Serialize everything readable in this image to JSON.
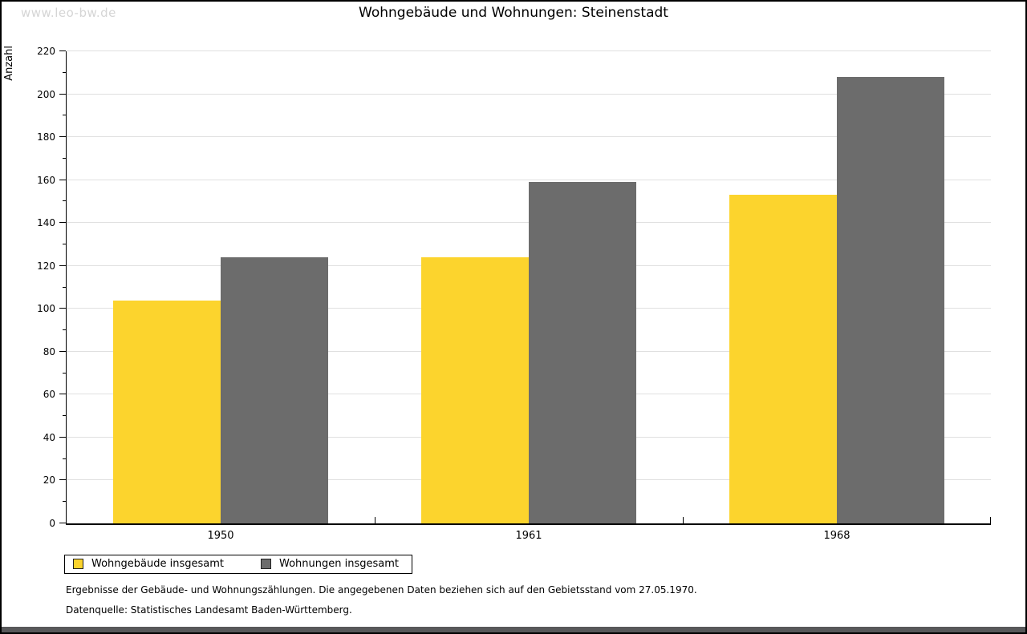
{
  "watermark": "www.leo-bw.de",
  "footer": {
    "line1": "Ergebnisse der Gebäude- und Wohnungszählungen. Die angegebenen Daten beziehen sich auf den Gebietsstand vom 27.05.1970.",
    "line2": "Datenquelle: Statistisches Landesamt Baden-Württemberg."
  },
  "chart_data": {
    "type": "bar",
    "title": "Wohngebäude und Wohnungen: Steinenstadt",
    "ylabel": "Anzahl",
    "categories": [
      "1950",
      "1961",
      "1968"
    ],
    "series": [
      {
        "name": "Wohngebäude insgesamt",
        "color": "#fcd42d",
        "values": [
          104,
          124,
          153
        ]
      },
      {
        "name": "Wohnungen insgesamt",
        "color": "#6c6c6c",
        "values": [
          124,
          159,
          208
        ]
      }
    ],
    "ylim": [
      0,
      220
    ],
    "ytick_step": 20,
    "minor_tick_step": 10,
    "grid": true,
    "gridline_color": "#e0e0e0",
    "legend_position": "bottom-left"
  }
}
